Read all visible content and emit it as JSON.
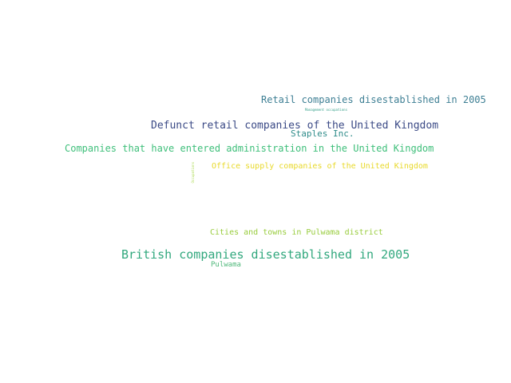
{
  "colors": {
    "background": "#ffffff"
  },
  "words": [
    {
      "id": "retail_2005",
      "text": "Retail companies disestablished in 2005",
      "color": "#3e7f94"
    },
    {
      "id": "mgmt",
      "text": "Management occupations",
      "color": "#35a08a"
    },
    {
      "id": "defunct",
      "text": "Defunct retail companies of the United Kingdom",
      "color": "#3b4a86"
    },
    {
      "id": "staples",
      "text": "Staples Inc.",
      "color": "#2f8c8a"
    },
    {
      "id": "admin",
      "text": "Companies that have entered administration in the United Kingdom",
      "color": "#3ebf7a"
    },
    {
      "id": "office",
      "text": "Office supply companies of the United Kingdom",
      "color": "#e8d92a"
    },
    {
      "id": "occupations",
      "text": "Occupations",
      "color": "#a8d84a"
    },
    {
      "id": "cities",
      "text": "Cities and towns in Pulwama district",
      "color": "#98cc3c"
    },
    {
      "id": "british",
      "text": "British companies disestablished in 2005",
      "color": "#32a87e"
    },
    {
      "id": "pulwama",
      "text": "Pulwama",
      "color": "#4fb87a"
    }
  ]
}
